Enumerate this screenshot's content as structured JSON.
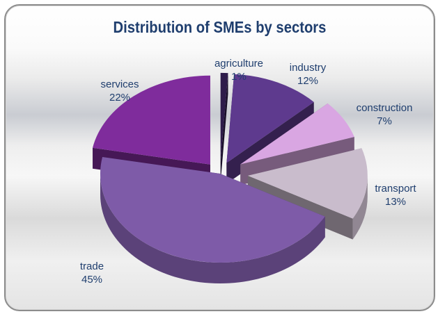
{
  "chart_data": {
    "type": "pie",
    "title": "Distribution of SMEs by sectors",
    "categories": [
      "agriculture",
      "industry",
      "construction",
      "transport",
      "trade",
      "services"
    ],
    "values": [
      1,
      12,
      7,
      13,
      45,
      22
    ],
    "value_labels": [
      "1%",
      "12%",
      "7%",
      "13%",
      "45%",
      "22%"
    ],
    "style": "3d-exploded",
    "colors": {
      "agriculture": "#2e1c4a",
      "industry": "#5e3a8e",
      "construction": "#d9a6e2",
      "transport": "#c9bccc",
      "trade": "#7e5ba8",
      "services": "#7f2c9c"
    }
  }
}
